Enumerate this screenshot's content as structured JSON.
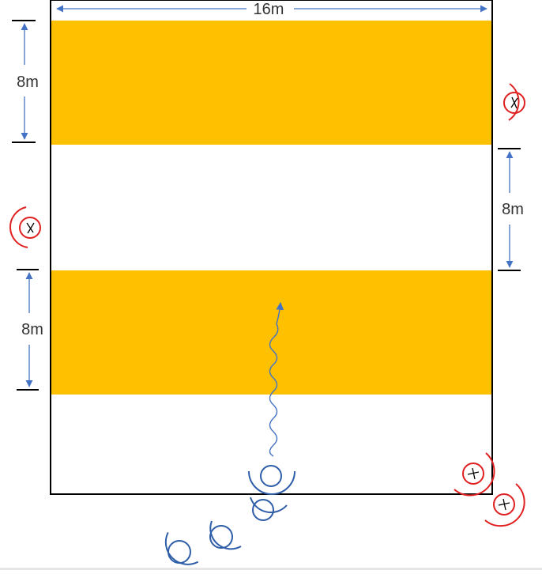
{
  "diagram": {
    "field_width_label": "16m",
    "top_band_height_label": "8m",
    "right_gap_label": "8m",
    "lower_band_height_label": "8m"
  },
  "colors": {
    "band": "#FFC000",
    "arrow": "#4472C4",
    "defender": "#E02020",
    "player": "#2E5EA8",
    "border": "#000000"
  },
  "icons": {
    "defender": "defender-x-icon",
    "attacker": "attacker-circle-icon",
    "path": "wavy-run-arrow"
  }
}
